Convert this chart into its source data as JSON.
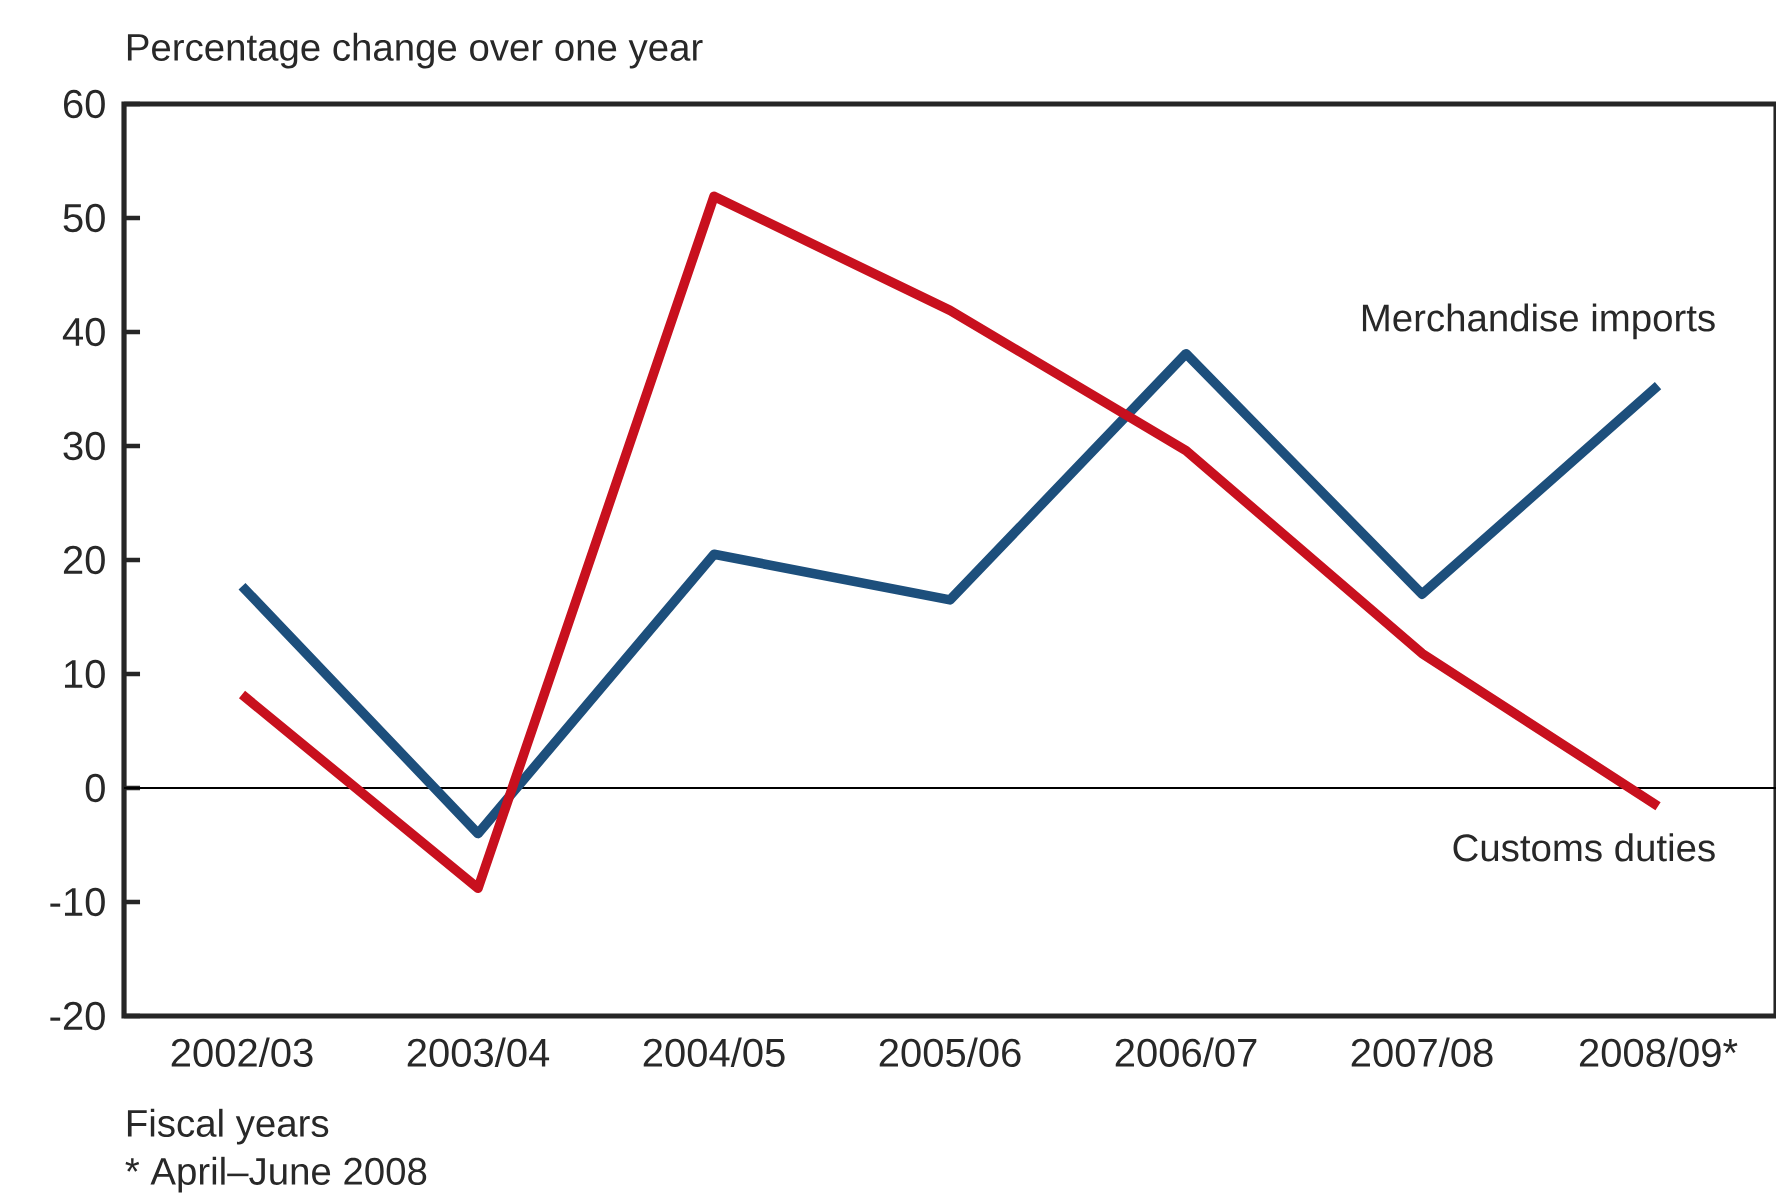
{
  "chart_data": {
    "type": "line",
    "ylabel": "Percentage change over one year",
    "xlabel": "Fiscal years",
    "annotations": [
      "* April–June 2008"
    ],
    "categories": [
      "2002/03",
      "2003/04",
      "2004/05",
      "2005/06",
      "2006/07",
      "2007/08",
      "2008/09*"
    ],
    "series": [
      {
        "name": "Merchandise imports",
        "color": "#1d4f7c",
        "values": [
          17.7,
          -4.0,
          20.5,
          16.5,
          38.1,
          17.0,
          35.3
        ]
      },
      {
        "name": "Customs duties",
        "color": "#c8101e",
        "values": [
          8.2,
          -8.8,
          51.9,
          41.9,
          29.6,
          11.8,
          -1.6
        ]
      }
    ],
    "ylim": [
      -20,
      60
    ],
    "yticks": [
      -20,
      -10,
      0,
      10,
      20,
      30,
      40,
      50,
      60
    ],
    "ref_lines": [
      {
        "axis": "y",
        "value": 0,
        "color": "#000000"
      }
    ],
    "grid": false,
    "marker": "none",
    "line_style": "solid"
  }
}
